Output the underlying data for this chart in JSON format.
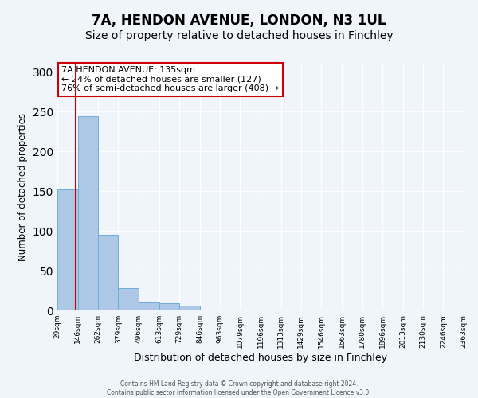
{
  "title": "7A, HENDON AVENUE, LONDON, N3 1UL",
  "subtitle": "Size of property relative to detached houses in Finchley",
  "xlabel": "Distribution of detached houses by size in Finchley",
  "ylabel": "Number of detached properties",
  "bar_edges": [
    29,
    146,
    262,
    379,
    496,
    613,
    729,
    846,
    963,
    1079,
    1196,
    1313,
    1429,
    1546,
    1663,
    1780,
    1896,
    2013,
    2130,
    2246,
    2363
  ],
  "bar_heights": [
    152,
    244,
    95,
    28,
    10,
    9,
    6,
    1,
    0,
    0,
    0,
    0,
    0,
    0,
    0,
    0,
    0,
    0,
    0,
    1
  ],
  "tick_labels": [
    "29sqm",
    "146sqm",
    "262sqm",
    "379sqm",
    "496sqm",
    "613sqm",
    "729sqm",
    "846sqm",
    "963sqm",
    "1079sqm",
    "1196sqm",
    "1313sqm",
    "1429sqm",
    "1546sqm",
    "1663sqm",
    "1780sqm",
    "1896sqm",
    "2013sqm",
    "2130sqm",
    "2246sqm",
    "2363sqm"
  ],
  "bar_color": "#adc8e6",
  "bar_edge_color": "#6aaed6",
  "bg_color": "#f0f4fb",
  "grid_color": "#ffffff",
  "property_line_x": 135,
  "annotation_box_text": "7A HENDON AVENUE: 135sqm\n← 24% of detached houses are smaller (127)\n76% of semi-detached houses are larger (408) →",
  "annotation_box_color": "#ffffff",
  "annotation_box_edge_color": "#cc0000",
  "property_line_color": "#cc0000",
  "ylim": [
    0,
    310
  ],
  "footer_line1": "Contains HM Land Registry data © Crown copyright and database right 2024.",
  "footer_line2": "Contains public sector information licensed under the Open Government Licence v3.0.",
  "title_fontsize": 12,
  "subtitle_fontsize": 10,
  "ylabel_fontsize": 8.5,
  "xlabel_fontsize": 9
}
